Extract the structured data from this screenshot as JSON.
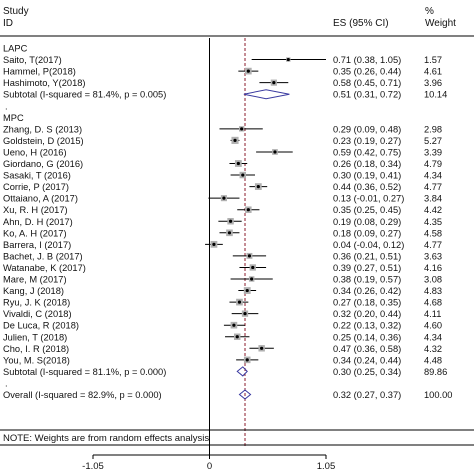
{
  "header": {
    "study_line1": "Study",
    "study_line2": "ID",
    "es_label": "ES (95% CI)",
    "pct_line1": "%",
    "pct_line2": "Weight"
  },
  "note": "NOTE: Weights are from random effects analysis",
  "colors": {
    "ci_line": "#000000",
    "box": "#b0b0b0",
    "point": "#000000",
    "diamond": "#3a3aa0",
    "ref_line": "#8b1c2c"
  },
  "chart_data": {
    "type": "forest",
    "xlim": [
      -1.05,
      1.05
    ],
    "x_ticks": [
      "-1.05",
      "0",
      "1.05"
    ],
    "reference_line": 0.32,
    "rows": [
      {
        "kind": "group",
        "label": "LAPC"
      },
      {
        "kind": "study",
        "label": "Saito, T(2017)",
        "es": 0.71,
        "lo": 0.38,
        "hi": 1.05,
        "es_text": "0.71 (0.38, 1.05)",
        "weight": "1.57"
      },
      {
        "kind": "study",
        "label": "Hammel, P(2018)",
        "es": 0.35,
        "lo": 0.26,
        "hi": 0.44,
        "es_text": "0.35 (0.26, 0.44)",
        "weight": "4.61"
      },
      {
        "kind": "study",
        "label": "Hashimoto, Y(2018)",
        "es": 0.58,
        "lo": 0.45,
        "hi": 0.71,
        "es_text": "0.58 (0.45, 0.71)",
        "weight": "3.96"
      },
      {
        "kind": "subtotal",
        "label": "Subtotal  (I-squared = 81.4%, p = 0.005)",
        "es": 0.51,
        "lo": 0.31,
        "hi": 0.72,
        "es_text": "0.51 (0.31, 0.72)",
        "weight": "10.14"
      },
      {
        "kind": "blank",
        "label": "."
      },
      {
        "kind": "group",
        "label": "MPC"
      },
      {
        "kind": "study",
        "label": "Zhang, D. S (2013)",
        "es": 0.29,
        "lo": 0.09,
        "hi": 0.48,
        "es_text": "0.29 (0.09, 0.48)",
        "weight": "2.98"
      },
      {
        "kind": "study",
        "label": "Goldstein, D (2015)",
        "es": 0.23,
        "lo": 0.19,
        "hi": 0.27,
        "es_text": "0.23 (0.19, 0.27)",
        "weight": "5.27"
      },
      {
        "kind": "study",
        "label": "Ueno, H (2016)",
        "es": 0.59,
        "lo": 0.42,
        "hi": 0.75,
        "es_text": "0.59 (0.42, 0.75)",
        "weight": "3.39"
      },
      {
        "kind": "study",
        "label": "Giordano, G (2016)",
        "es": 0.26,
        "lo": 0.18,
        "hi": 0.34,
        "es_text": "0.26 (0.18, 0.34)",
        "weight": "4.79"
      },
      {
        "kind": "study",
        "label": "Sasaki, T (2016)",
        "es": 0.3,
        "lo": 0.19,
        "hi": 0.41,
        "es_text": "0.30 (0.19, 0.41)",
        "weight": "4.34"
      },
      {
        "kind": "study",
        "label": "Corrie, P (2017)",
        "es": 0.44,
        "lo": 0.36,
        "hi": 0.52,
        "es_text": "0.44 (0.36, 0.52)",
        "weight": "4.77"
      },
      {
        "kind": "study",
        "label": "Ottaiano, A (2017)",
        "es": 0.13,
        "lo": -0.01,
        "hi": 0.27,
        "es_text": "0.13 (-0.01, 0.27)",
        "weight": "3.84"
      },
      {
        "kind": "study",
        "label": "Xu, R. H (2017)",
        "es": 0.35,
        "lo": 0.25,
        "hi": 0.45,
        "es_text": "0.35 (0.25, 0.45)",
        "weight": "4.42"
      },
      {
        "kind": "study",
        "label": "Ahn, D. H (2017)",
        "es": 0.19,
        "lo": 0.08,
        "hi": 0.29,
        "es_text": "0.19 (0.08, 0.29)",
        "weight": "4.35"
      },
      {
        "kind": "study",
        "label": "Ko, A. H (2017)",
        "es": 0.18,
        "lo": 0.09,
        "hi": 0.27,
        "es_text": "0.18 (0.09, 0.27)",
        "weight": "4.58"
      },
      {
        "kind": "study",
        "label": "Barrera, I (2017)",
        "es": 0.04,
        "lo": -0.04,
        "hi": 0.12,
        "es_text": "0.04 (-0.04, 0.12)",
        "weight": "4.77"
      },
      {
        "kind": "study",
        "label": "Bachet, J. B (2017)",
        "es": 0.36,
        "lo": 0.21,
        "hi": 0.51,
        "es_text": "0.36 (0.21, 0.51)",
        "weight": "3.63"
      },
      {
        "kind": "study",
        "label": "Watanabe, K (2017)",
        "es": 0.39,
        "lo": 0.27,
        "hi": 0.51,
        "es_text": "0.39 (0.27, 0.51)",
        "weight": "4.16"
      },
      {
        "kind": "study",
        "label": "Mare, M (2017)",
        "es": 0.38,
        "lo": 0.19,
        "hi": 0.57,
        "es_text": "0.38 (0.19, 0.57)",
        "weight": "3.08"
      },
      {
        "kind": "study",
        "label": "Kang, J (2018)",
        "es": 0.34,
        "lo": 0.26,
        "hi": 0.42,
        "es_text": "0.34 (0.26, 0.42)",
        "weight": "4.83"
      },
      {
        "kind": "study",
        "label": "Ryu, J. K (2018)",
        "es": 0.27,
        "lo": 0.18,
        "hi": 0.35,
        "es_text": "0.27 (0.18, 0.35)",
        "weight": "4.68"
      },
      {
        "kind": "study",
        "label": "Vivaldi, C (2018)",
        "es": 0.32,
        "lo": 0.2,
        "hi": 0.44,
        "es_text": "0.32 (0.20, 0.44)",
        "weight": "4.11"
      },
      {
        "kind": "study",
        "label": "De Luca, R (2018)",
        "es": 0.22,
        "lo": 0.13,
        "hi": 0.32,
        "es_text": "0.22 (0.13, 0.32)",
        "weight": "4.60"
      },
      {
        "kind": "study",
        "label": "Julien, T (2018)",
        "es": 0.25,
        "lo": 0.14,
        "hi": 0.36,
        "es_text": "0.25 (0.14, 0.36)",
        "weight": "4.34"
      },
      {
        "kind": "study",
        "label": "Cho, I. R (2018)",
        "es": 0.47,
        "lo": 0.36,
        "hi": 0.58,
        "es_text": "0.47 (0.36, 0.58)",
        "weight": "4.32"
      },
      {
        "kind": "study",
        "label": "You, M. S(2018)",
        "es": 0.34,
        "lo": 0.24,
        "hi": 0.44,
        "es_text": "0.34 (0.24, 0.44)",
        "weight": "4.48"
      },
      {
        "kind": "subtotal",
        "label": "Subtotal  (I-squared = 81.1%, p = 0.000)",
        "es": 0.3,
        "lo": 0.25,
        "hi": 0.34,
        "es_text": "0.30 (0.25, 0.34)",
        "weight": "89.86"
      },
      {
        "kind": "blank",
        "label": "."
      },
      {
        "kind": "overall",
        "label": "Overall  (I-squared = 82.9%, p = 0.000)",
        "es": 0.32,
        "lo": 0.27,
        "hi": 0.37,
        "es_text": "0.32 (0.27, 0.37)",
        "weight": "100.00"
      }
    ]
  }
}
